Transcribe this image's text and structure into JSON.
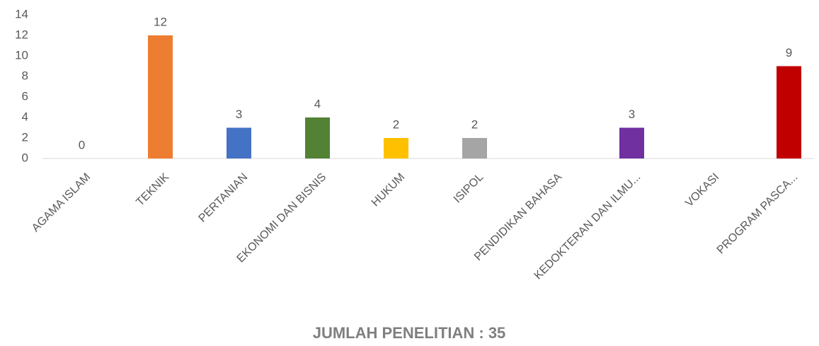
{
  "chart_data": {
    "type": "bar",
    "title": "JUMLAH PENELITIAN : 35",
    "categories": [
      "AGAMA ISLAM",
      "TEKNIK",
      "PERTANIAN",
      "EKONOMI DAN BISNIS",
      "HUKUM",
      "ISIPOL",
      "PENDIDIKAN BAHASA",
      "KEDOKTERAN DAN ILMU...",
      "VOKASI",
      "PROGRAM PASCA..."
    ],
    "values": [
      0,
      12,
      3,
      4,
      2,
      2,
      null,
      3,
      null,
      9
    ],
    "colors": [
      null,
      "#ed7d31",
      "#4472c4",
      "#548235",
      "#ffc000",
      "#a5a5a5",
      null,
      "#7030a0",
      null,
      "#c00000"
    ],
    "ylim": [
      0,
      14
    ],
    "yticks": [
      0,
      2,
      4,
      6,
      8,
      10,
      12,
      14
    ],
    "grid": false
  }
}
